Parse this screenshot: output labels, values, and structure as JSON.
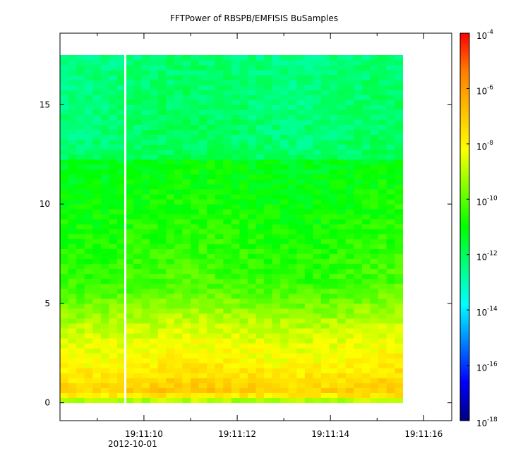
{
  "chart_data": {
    "type": "heatmap",
    "title": "FFTPower of RBSPB/EMFISIS  BuSamples",
    "xlabel": "",
    "ylabel": "",
    "x_ticks": [
      {
        "t": 10,
        "label": "19:11:10"
      },
      {
        "t": 12,
        "label": "19:11:12"
      },
      {
        "t": 14,
        "label": "19:11:14"
      },
      {
        "t": 16,
        "label": "19:11:16"
      }
    ],
    "x_minor_ticks": [
      9,
      11,
      13,
      15
    ],
    "x_date_label": "2012-10-01",
    "xlim": [
      "19:11:08.2",
      "19:11:16.6"
    ],
    "data_x_range": [
      "19:11:08.2",
      "19:11:15.55"
    ],
    "data_gap_time": "19:11:09.6",
    "y_ticks": [
      0,
      5,
      10,
      15
    ],
    "ylim": [
      -0.9,
      18.6
    ],
    "y_bins": {
      "start": 0,
      "end": 17.5,
      "step": 0.25
    },
    "colorbar": {
      "scale": "log",
      "range": [
        1e-18,
        0.0001
      ],
      "ticks": [
        {
          "base": "10",
          "exp": "-4"
        },
        {
          "base": "10",
          "exp": "-6"
        },
        {
          "base": "10",
          "exp": "-8"
        },
        {
          "base": "10",
          "exp": "-10"
        },
        {
          "base": "10",
          "exp": "-12"
        },
        {
          "base": "10",
          "exp": "-14"
        },
        {
          "base": "10",
          "exp": "-16"
        },
        {
          "base": "10",
          "exp": "-18"
        }
      ],
      "colors": [
        "#00007f",
        "#0000ff",
        "#007fff",
        "#00ffff",
        "#00ff7f",
        "#00ff00",
        "#7fff00",
        "#ffff00",
        "#ffbf00",
        "#ff7f00",
        "#ff0000"
      ]
    },
    "power_profile_log10": [
      {
        "y": 0.1,
        "p": -9.2
      },
      {
        "y": 0.5,
        "p": -7.0
      },
      {
        "y": 1.0,
        "p": -7.4
      },
      {
        "y": 2.0,
        "p": -8.0
      },
      {
        "y": 3.0,
        "p": -8.4
      },
      {
        "y": 4.0,
        "p": -8.9
      },
      {
        "y": 5.0,
        "p": -9.7
      },
      {
        "y": 6.0,
        "p": -10.3
      },
      {
        "y": 8.0,
        "p": -10.6
      },
      {
        "y": 10.0,
        "p": -10.9
      },
      {
        "y": 12.2,
        "p": -11.2
      },
      {
        "y": 12.4,
        "p": -12.1
      },
      {
        "y": 15.0,
        "p": -12.2
      },
      {
        "y": 17.5,
        "p": -12.3
      }
    ]
  }
}
